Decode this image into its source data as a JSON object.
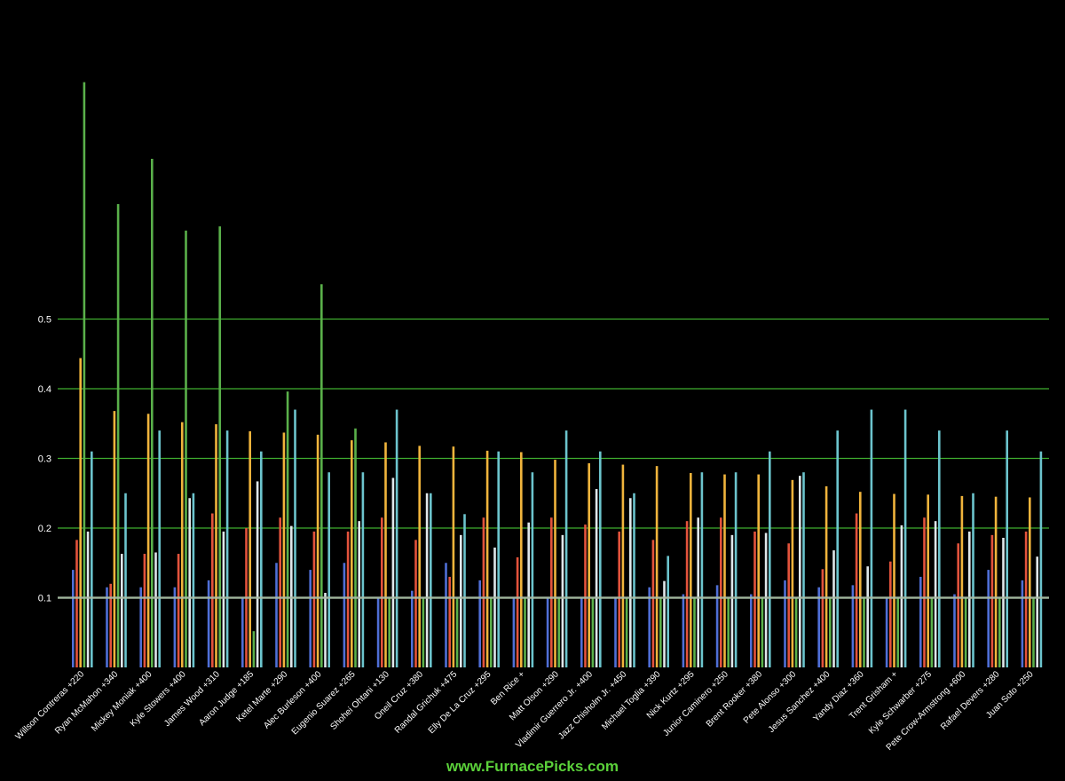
{
  "chart_data": {
    "type": "bar",
    "categories": [
      "Willson Contreras +220",
      "Ryan McMahon +340",
      "Mickey Moniak +400",
      "Kyle Stowers +400",
      "James Wood +310",
      "Aaron Judge +185",
      "Ketel Marte +290",
      "Alec Burleson +400",
      "Eugenio Suarez +265",
      "Shohei Ohtani +130",
      "Oneil Cruz +380",
      "Randal Grichuk +475",
      "Elly De La Cruz +295",
      "Ben Rice +",
      "Matt Olson +290",
      "Vladimir Guerrero Jr. +400",
      "Jazz Chisholm Jr. +450",
      "Michael Toglia +390",
      "Nick Kurtz +295",
      "Junior Caminero +250",
      "Brent Rooker +380",
      "Pete Alonso +300",
      "Jesus Sanchez +400",
      "Yandy Diaz +360",
      "Trent Grisham +",
      "Kyle Schwarber +275",
      "Pete Crow-Armstrong +600",
      "Rafael Devers +280",
      "Juan Soto +250"
    ],
    "series": [
      {
        "color": "#4f6fd6",
        "values": [
          0.14,
          0.115,
          0.115,
          0.115,
          0.125,
          0.1,
          0.15,
          0.14,
          0.15,
          0.1,
          0.11,
          0.15,
          0.125,
          0.1,
          0.1,
          0.1,
          0.1,
          0.115,
          0.105,
          0.118,
          0.105,
          0.125,
          0.115,
          0.118,
          0.1,
          0.13,
          0.105,
          0.14,
          0.125
        ]
      },
      {
        "color": "#e3533c",
        "values": [
          0.183,
          0.12,
          0.163,
          0.163,
          0.221,
          0.2,
          0.215,
          0.195,
          0.195,
          0.215,
          0.183,
          0.13,
          0.215,
          0.158,
          0.215,
          0.205,
          0.195,
          0.183,
          0.21,
          0.215,
          0.195,
          0.178,
          0.141,
          0.221,
          0.152,
          0.215,
          0.178,
          0.19,
          0.195
        ]
      },
      {
        "color": "#f0b43c",
        "values": [
          0.444,
          0.368,
          0.364,
          0.352,
          0.349,
          0.339,
          0.337,
          0.334,
          0.326,
          0.323,
          0.318,
          0.317,
          0.311,
          0.309,
          0.298,
          0.293,
          0.291,
          0.289,
          0.279,
          0.277,
          0.277,
          0.269,
          0.26,
          0.252,
          0.249,
          0.248,
          0.246,
          0.245,
          0.244
        ]
      },
      {
        "color": "#5ab04a",
        "values": [
          0.84,
          0.665,
          0.73,
          0.627,
          0.633,
          0.052,
          0.396,
          0.55,
          0.343,
          0.1,
          0.1,
          0.1,
          0.1,
          0.1,
          0.1,
          0.1,
          0.1,
          0.1,
          0.1,
          0.1,
          0.1,
          0.1,
          0.1,
          0.1,
          0.1,
          0.1,
          0.1,
          0.1,
          0.1
        ]
      },
      {
        "color": "#dfe7ea",
        "values": [
          0.195,
          0.163,
          0.165,
          0.243,
          0.195,
          0.267,
          0.203,
          0.107,
          0.21,
          0.272,
          0.25,
          0.19,
          0.172,
          0.208,
          0.19,
          0.256,
          0.243,
          0.124,
          0.215,
          0.19,
          0.193,
          0.275,
          0.168,
          0.145,
          0.204,
          0.21,
          0.195,
          0.186,
          0.159
        ]
      },
      {
        "color": "#6cc4cd",
        "values": [
          0.31,
          0.25,
          0.34,
          0.25,
          0.34,
          0.31,
          0.37,
          0.28,
          0.28,
          0.37,
          0.25,
          0.22,
          0.31,
          0.28,
          0.34,
          0.31,
          0.25,
          0.16,
          0.28,
          0.28,
          0.31,
          0.28,
          0.34,
          0.37,
          0.37,
          0.34,
          0.25,
          0.34,
          0.31
        ]
      }
    ],
    "yticks": [
      "0.1",
      "0.2",
      "0.3",
      "0.4",
      "0.5"
    ],
    "grid": true,
    "grid_color": "#3fae2f",
    "reference_line_color": "#a9b9a6",
    "background": "#000000"
  },
  "footer": {
    "text": "www.FurnacePicks.com",
    "color": "#5bd13a"
  }
}
